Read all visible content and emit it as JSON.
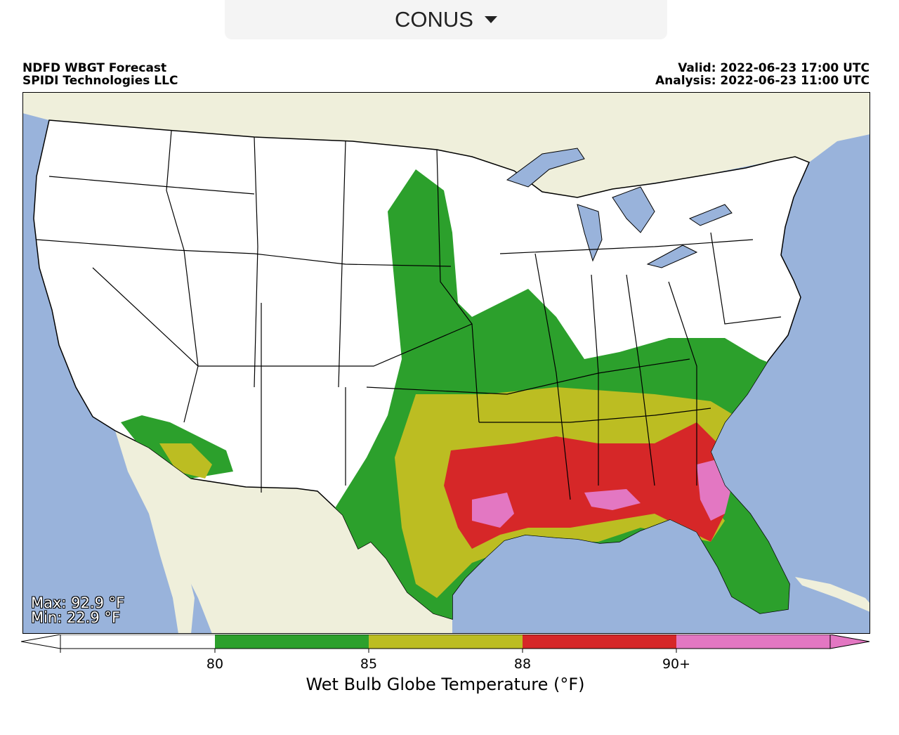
{
  "selector": {
    "value": "CONUS"
  },
  "header": {
    "title": "NDFD WBGT Forecast",
    "org": "SPIDI Technologies LLC",
    "valid": "Valid: 2022-06-23 17:00 UTC",
    "analysis": "Analysis: 2022-06-23 11:00 UTC"
  },
  "stats": {
    "max": "Max: 92.9 °F",
    "min": "Min: 22.9 °F"
  },
  "colors": {
    "ocean": "#99b3db",
    "land": "#efefdb",
    "white": "#ffffff",
    "green": "#2ca02c",
    "olive": "#bcbd22",
    "red": "#d62728",
    "pink": "#e377c2"
  },
  "colorbar": {
    "title": "Wet Bulb Globe Temperature (°F)",
    "ticks": [
      "80",
      "85",
      "88",
      "90+"
    ],
    "categories": [
      {
        "range": "< 80",
        "color": "#ffffff"
      },
      {
        "range": "80–85",
        "color": "#2ca02c"
      },
      {
        "range": "85–88",
        "color": "#bcbd22"
      },
      {
        "range": "88–90",
        "color": "#d62728"
      },
      {
        "range": "90+",
        "color": "#e377c2"
      }
    ]
  }
}
